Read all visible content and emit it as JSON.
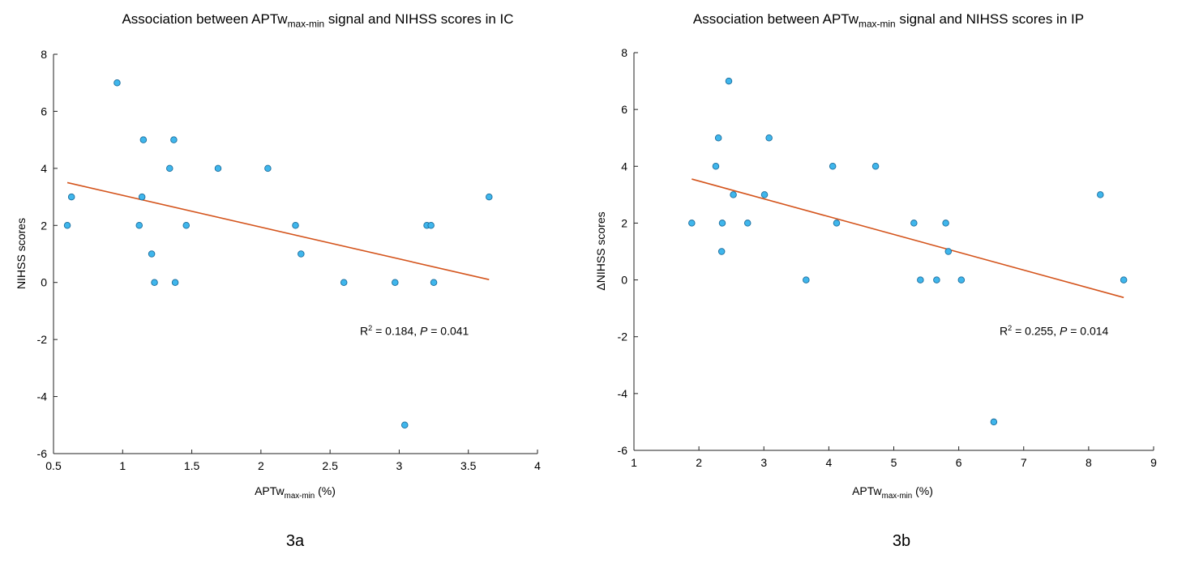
{
  "chart_data": [
    {
      "type": "scatter",
      "title": {
        "pre": "Association between APTw",
        "sub": "max-min",
        "post": " signal and NIHSS scores in IC"
      },
      "xlabel": {
        "pre": "APTw",
        "sub": "max-min",
        "post": " (%)"
      },
      "ylabel": "NIHSS scores",
      "xlim": [
        0.5,
        4
      ],
      "ylim": [
        -6,
        8
      ],
      "xticks": [
        0.5,
        1,
        1.5,
        2,
        2.5,
        3,
        3.5,
        4
      ],
      "yticks": [
        -6,
        -4,
        -2,
        0,
        2,
        4,
        6,
        8
      ],
      "x": [
        0.6,
        0.63,
        0.96,
        1.15,
        1.14,
        1.12,
        1.21,
        1.23,
        1.34,
        1.37,
        1.38,
        1.46,
        1.69,
        2.05,
        2.25,
        2.29,
        2.6,
        2.97,
        3.04,
        3.2,
        3.23,
        3.25,
        3.65
      ],
      "y": [
        2,
        3,
        7,
        5,
        3,
        2,
        1,
        0,
        4,
        5,
        0,
        2,
        4,
        4,
        2,
        1,
        0,
        0,
        -5,
        2,
        2,
        0,
        3
      ],
      "fit_line": {
        "x": [
          0.6,
          3.65
        ],
        "y": [
          3.5,
          0.1
        ]
      },
      "annotation": {
        "r2": "0.184",
        "p": "0.041"
      },
      "caption": "3a"
    },
    {
      "type": "scatter",
      "title": {
        "pre": "Association between APTw",
        "sub": "max-min",
        "post": " signal and NIHSS scores in IP"
      },
      "xlabel": {
        "pre": "APTw",
        "sub": "max-min",
        "post": " (%)"
      },
      "ylabel": "ΔNIHSS scores",
      "xlim": [
        1,
        9
      ],
      "ylim": [
        -6,
        8
      ],
      "xticks": [
        1,
        2,
        3,
        4,
        5,
        6,
        7,
        8,
        9
      ],
      "yticks": [
        -6,
        -4,
        -2,
        0,
        2,
        4,
        6,
        8
      ],
      "x": [
        1.89,
        2.26,
        2.3,
        2.46,
        2.53,
        2.36,
        2.35,
        2.75,
        3.01,
        3.08,
        3.65,
        4.06,
        4.12,
        4.72,
        5.31,
        5.41,
        5.66,
        5.8,
        5.84,
        6.04,
        6.54,
        8.18,
        8.54
      ],
      "y": [
        2,
        4,
        5,
        7,
        3,
        2,
        1,
        2,
        3,
        5,
        0,
        4,
        2,
        4,
        2,
        0,
        0,
        2,
        1,
        0,
        -5,
        3,
        0
      ],
      "fit_line": {
        "x": [
          1.89,
          8.54
        ],
        "y": [
          3.55,
          -0.62
        ]
      },
      "annotation": {
        "r2": "0.255",
        "p": "0.014"
      },
      "caption": "3b"
    }
  ],
  "colors": {
    "point_fill": "#3fb6ec",
    "point_stroke": "#1c6d9c",
    "fit_line": "#d4541c",
    "axis": "#222222"
  }
}
